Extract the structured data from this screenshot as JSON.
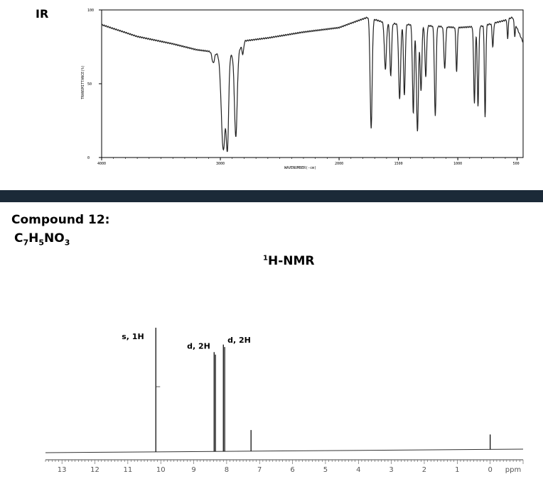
{
  "ir_title": "IR",
  "compound_title": "Compound 12:",
  "formula": {
    "c": "C",
    "c_n": "7",
    "h": "H",
    "h_n": "5",
    "rest": "NO",
    "o_n": "3"
  },
  "nmr_title": {
    "sup": "1",
    "text": "H-NMR"
  },
  "chart_data": [
    {
      "type": "line",
      "title": "IR",
      "xlabel": "WAVENUMBER(-cm)",
      "ylabel": "TRANSMITTANCE(%)",
      "xlim": [
        4000,
        450
      ],
      "ylim": [
        0,
        100
      ],
      "x_ticks": [
        "4000",
        "3000",
        "2000",
        "1500",
        "1000",
        "500"
      ],
      "y_ticks": [
        "100",
        "50",
        "0"
      ],
      "baseline": [
        [
          4000,
          90
        ],
        [
          3700,
          82
        ],
        [
          3400,
          77
        ],
        [
          3200,
          73
        ],
        [
          3100,
          72
        ],
        [
          2960,
          69
        ],
        [
          2860,
          70
        ],
        [
          2800,
          79
        ],
        [
          2600,
          81
        ],
        [
          2300,
          85
        ],
        [
          2000,
          88
        ],
        [
          1900,
          91
        ],
        [
          1760,
          95
        ],
        [
          1600,
          91
        ],
        [
          1400,
          90
        ],
        [
          1200,
          89
        ],
        [
          1000,
          88
        ],
        [
          800,
          89
        ],
        [
          600,
          93
        ],
        [
          540,
          95
        ],
        [
          450,
          78
        ]
      ],
      "peaks": [
        {
          "x": 3060,
          "y": 64,
          "w": 14
        },
        {
          "x": 2975,
          "y": 5,
          "w": 24
        },
        {
          "x": 2940,
          "y": 12,
          "w": 14
        },
        {
          "x": 2870,
          "y": 14,
          "w": 16
        },
        {
          "x": 2810,
          "y": 70,
          "w": 10
        },
        {
          "x": 1730,
          "y": 20,
          "w": 12
        },
        {
          "x": 1610,
          "y": 60,
          "w": 12
        },
        {
          "x": 1565,
          "y": 55,
          "w": 10
        },
        {
          "x": 1490,
          "y": 40,
          "w": 12
        },
        {
          "x": 1450,
          "y": 42,
          "w": 10
        },
        {
          "x": 1375,
          "y": 30,
          "w": 10
        },
        {
          "x": 1340,
          "y": 18,
          "w": 12
        },
        {
          "x": 1310,
          "y": 45,
          "w": 10
        },
        {
          "x": 1270,
          "y": 55,
          "w": 10
        },
        {
          "x": 1190,
          "y": 28,
          "w": 10
        },
        {
          "x": 1110,
          "y": 60,
          "w": 10
        },
        {
          "x": 1010,
          "y": 58,
          "w": 8
        },
        {
          "x": 860,
          "y": 37,
          "w": 9
        },
        {
          "x": 830,
          "y": 35,
          "w": 9
        },
        {
          "x": 770,
          "y": 27,
          "w": 8
        },
        {
          "x": 705,
          "y": 75,
          "w": 8
        },
        {
          "x": 580,
          "y": 80,
          "w": 6
        },
        {
          "x": 520,
          "y": 82,
          "w": 6
        }
      ]
    },
    {
      "type": "line",
      "title": "H-NMR",
      "xlabel": "ppm",
      "xlim": [
        13.5,
        -1.0
      ],
      "x_ticks": [
        "13",
        "12",
        "11",
        "10",
        "9",
        "8",
        "7",
        "6",
        "5",
        "4",
        "3",
        "2",
        "1",
        "0"
      ],
      "peaks": [
        {
          "x": 10.15,
          "height": 1.0,
          "label": "s, 1H"
        },
        {
          "x": 8.38,
          "height": 0.8
        },
        {
          "x": 8.34,
          "height": 0.78,
          "label": "d, 2H"
        },
        {
          "x": 8.1,
          "height": 0.86
        },
        {
          "x": 8.06,
          "height": 0.84,
          "label": "d, 2H"
        },
        {
          "x": 7.26,
          "height": 0.17
        },
        {
          "x": 0.0,
          "height": 0.12
        }
      ]
    }
  ]
}
